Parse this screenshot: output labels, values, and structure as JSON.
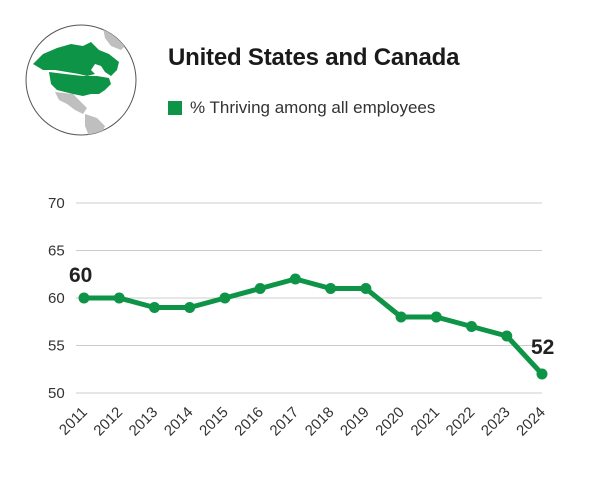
{
  "header": {
    "title": "United States and Canada",
    "legend_label": "% Thriving among all employees",
    "region_icon": "north-america-globe-icon"
  },
  "colors": {
    "accent": "#0e9447",
    "grid": "#cccccc",
    "globe_land": "#bfbfbf",
    "globe_highlight": "#0e9447"
  },
  "chart_data": {
    "type": "line",
    "title": "United States and Canada",
    "xlabel": "",
    "ylabel": "",
    "x": [
      "2011",
      "2012",
      "2013",
      "2014",
      "2015",
      "2016",
      "2017",
      "2018",
      "2019",
      "2020",
      "2021",
      "2022",
      "2023",
      "2024"
    ],
    "series": [
      {
        "name": "% Thriving among all employees",
        "values": [
          60,
          60,
          59,
          59,
          60,
          61,
          62,
          61,
          61,
          58,
          58,
          57,
          56,
          52
        ]
      }
    ],
    "ylim": [
      50,
      70
    ],
    "yticks": [
      "50",
      "55",
      "60",
      "65",
      "70"
    ],
    "grid": true,
    "legend": "top",
    "annotations": [
      {
        "label": "60",
        "at": "2011"
      },
      {
        "label": "52",
        "at": "2024"
      }
    ]
  }
}
